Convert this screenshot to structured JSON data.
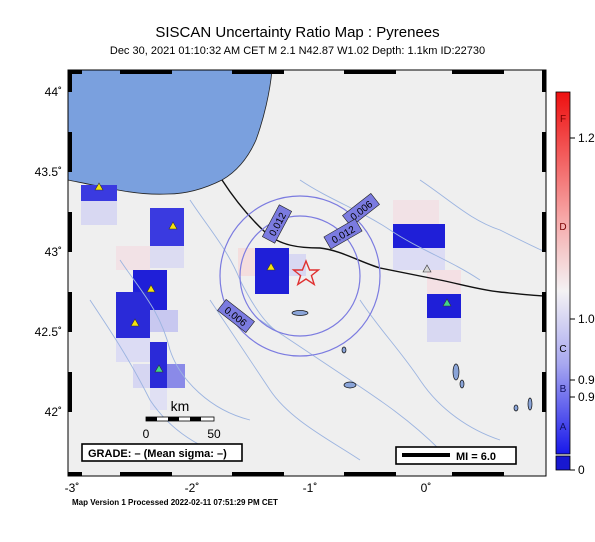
{
  "header": {
    "title": "SISCAN Uncertainty Ratio Map : Pyrenees",
    "subtitle": "Dec 30, 2021 01:10:32 AM CET   M 2.1   N42.87 W1.02   Depth: 1.1km   ID:22730"
  },
  "footer": {
    "text": "Map Version 1 Processed 2022-02-11 07:51:29 PM CET"
  },
  "axes": {
    "lon_labels": [
      "-3˚",
      "-2˚",
      "-1˚",
      "0˚"
    ],
    "lat_labels": [
      "44˚",
      "43.5˚",
      "43˚",
      "42.5˚",
      "42˚"
    ]
  },
  "scale_bar": {
    "unit": "km",
    "min_label": "0",
    "max_label": "50"
  },
  "grade_box": {
    "text": "GRADE: – (Mean sigma: –)"
  },
  "mi_box": {
    "text": "MI = 6.0"
  },
  "contour_labels": [
    "0.006",
    "0.012",
    "0.012",
    "0.006"
  ],
  "colorbar": {
    "letters": [
      "F",
      "D",
      "C",
      "B",
      "A"
    ],
    "values": [
      "1.2",
      "1.0",
      "0.9",
      "0.9",
      "0"
    ]
  },
  "colors": {
    "sea": "#7aa0de",
    "land": "#efefef",
    "river": "#9cb4e0",
    "contour": "#7b7be0",
    "epicenter": "#e03030",
    "station": "#f5e20f",
    "station_alt": "#43d38c",
    "cell_strong": "#1f1fd8",
    "cell_medium": "#3a3ae0",
    "cell_light": "#c8c8f0",
    "cell_pale": "#e2e2f4",
    "cell_pink": "#f4dede",
    "colorbar_top": "#ee2020",
    "colorbar_bottom": "#2020ee"
  }
}
